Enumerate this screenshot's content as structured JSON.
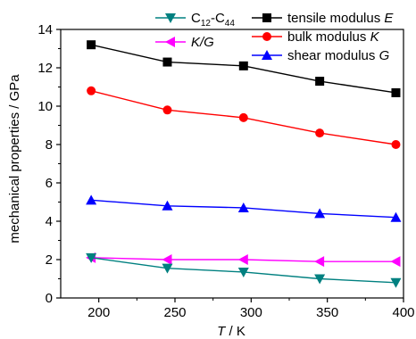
{
  "chart_data": {
    "type": "line",
    "xlabel": "T / K",
    "xlabel_var": "T",
    "xlabel_unit": " / K",
    "ylabel": "mechanical properties / GPa",
    "xlim": [
      175,
      400
    ],
    "ylim": [
      0,
      14
    ],
    "xticks": [
      200,
      250,
      300,
      350,
      400
    ],
    "yticks": [
      0,
      2,
      4,
      6,
      8,
      10,
      12,
      14
    ],
    "x": [
      195,
      245,
      295,
      345,
      395
    ],
    "series": [
      {
        "name": "tensile modulus E",
        "label_plain": "tensile modulus ",
        "label_italic": "E",
        "color": "#000000",
        "marker": "square",
        "values": [
          13.2,
          12.3,
          12.1,
          11.3,
          10.7
        ]
      },
      {
        "name": "bulk modulus K",
        "label_plain": "bulk modulus ",
        "label_italic": "K",
        "color": "#ff0000",
        "marker": "circle",
        "values": [
          10.8,
          9.8,
          9.4,
          8.6,
          8.0
        ]
      },
      {
        "name": "shear modulus G",
        "label_plain": "shear modulus ",
        "label_italic": "G",
        "color": "#0000ff",
        "marker": "triangle-up",
        "values": [
          5.1,
          4.8,
          4.7,
          4.4,
          4.2
        ]
      },
      {
        "name": "K/G",
        "label_plain": "",
        "label_italic": "K/G",
        "color": "#ff00ff",
        "marker": "triangle-left",
        "values": [
          2.1,
          2.0,
          2.0,
          1.9,
          1.9
        ]
      },
      {
        "name": "C12-C44",
        "label_plain": "C12-C44",
        "label_italic": "",
        "color": "#008080",
        "marker": "triangle-down",
        "values": [
          2.1,
          1.55,
          1.35,
          1.0,
          0.8
        ]
      }
    ],
    "grid": false,
    "legend_position": "top-right"
  }
}
